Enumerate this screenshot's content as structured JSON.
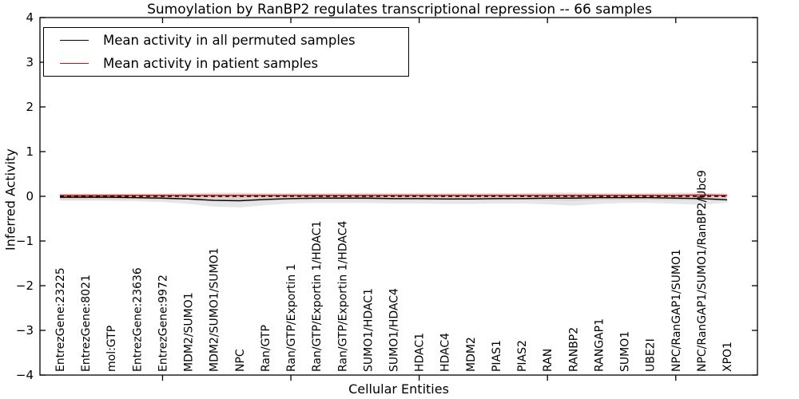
{
  "chart_data": {
    "type": "line",
    "title": "Sumoylation by RanBP2 regulates transcriptional repression -- 66 samples",
    "xlabel": "Cellular Entities",
    "ylabel": "Inferred Activity",
    "ylim": [
      -4,
      4
    ],
    "yticks": [
      4,
      3,
      2,
      1,
      0,
      -1,
      -2,
      -3,
      -4
    ],
    "ytick_labels": [
      "4",
      "3",
      "2",
      "1",
      "0",
      "−1",
      "−2",
      "−3",
      "−4"
    ],
    "x_major_tick_indices": [
      4,
      9,
      14,
      19,
      24
    ],
    "grid": false,
    "categories": [
      "EntrezGene:23225",
      "EntrezGene:8021",
      "mol:GTP",
      "EntrezGene:23636",
      "EntrezGene:9972",
      "MDM2/SUMO1",
      "MDM2/SUMO1/SUMO1",
      "NPC",
      "Ran/GTP",
      "Ran/GTP/Exportin 1",
      "Ran/GTP/Exportin 1/HDAC1",
      "Ran/GTP/Exportin 1/HDAC4",
      "SUMO1/HDAC1",
      "SUMO1/HDAC4",
      "HDAC1",
      "HDAC4",
      "MDM2",
      "PIAS1",
      "PIAS2",
      "RAN",
      "RANBP2",
      "RANGAP1",
      "SUMO1",
      "UBE2I",
      "NPC/RanGAP1/SUMO1",
      "NPC/RanGAP1/SUMO1/RanBP2/Ubc9",
      "XPO1"
    ],
    "series": [
      {
        "name": "Mean activity in all permuted samples",
        "color": "#000000",
        "style": "solid",
        "values": [
          -0.02,
          -0.02,
          -0.02,
          -0.03,
          -0.04,
          -0.06,
          -0.09,
          -0.1,
          -0.07,
          -0.05,
          -0.04,
          -0.04,
          -0.04,
          -0.05,
          -0.05,
          -0.06,
          -0.06,
          -0.05,
          -0.05,
          -0.04,
          -0.04,
          -0.03,
          -0.03,
          -0.03,
          -0.04,
          -0.05,
          -0.08
        ]
      },
      {
        "name": "Mean activity in patient samples",
        "color": "#ff0000",
        "style": "solid",
        "values": [
          0.02,
          0.02,
          0.02,
          0.02,
          0.02,
          0.02,
          0.02,
          0.02,
          0.02,
          0.02,
          0.02,
          0.02,
          0.02,
          0.02,
          0.02,
          0.02,
          0.02,
          0.02,
          0.02,
          0.02,
          0.02,
          0.02,
          0.02,
          0.02,
          0.02,
          0.03,
          0.02
        ]
      },
      {
        "name": "zero-reference",
        "color": "#000000",
        "style": "dashed",
        "values": [
          0,
          0,
          0,
          0,
          0,
          0,
          0,
          0,
          0,
          0,
          0,
          0,
          0,
          0,
          0,
          0,
          0,
          0,
          0,
          0,
          0,
          0,
          0,
          0,
          0,
          0,
          0
        ]
      }
    ],
    "bands": [
      {
        "name": "permuted-std-band",
        "color": "#d9d9d9",
        "opacity": 0.65,
        "upper": [
          0.05,
          0.05,
          0.05,
          0.06,
          0.06,
          0.07,
          0.08,
          0.08,
          0.07,
          0.07,
          0.07,
          0.07,
          0.07,
          0.07,
          0.07,
          0.07,
          0.07,
          0.07,
          0.07,
          0.08,
          0.08,
          0.07,
          0.07,
          0.07,
          0.08,
          0.08,
          0.06
        ],
        "lower": [
          -0.1,
          -0.1,
          -0.1,
          -0.11,
          -0.13,
          -0.17,
          -0.23,
          -0.25,
          -0.2,
          -0.16,
          -0.15,
          -0.15,
          -0.15,
          -0.16,
          -0.16,
          -0.17,
          -0.17,
          -0.16,
          -0.16,
          -0.18,
          -0.21,
          -0.17,
          -0.15,
          -0.15,
          -0.17,
          -0.19,
          -0.14
        ]
      },
      {
        "name": "patient-std-band",
        "color": "#c4c4c4",
        "opacity": 0.55,
        "upper": [
          0.06,
          0.06,
          0.06,
          0.06,
          0.06,
          0.06,
          0.06,
          0.06,
          0.06,
          0.06,
          0.06,
          0.06,
          0.06,
          0.06,
          0.06,
          0.06,
          0.06,
          0.06,
          0.06,
          0.06,
          0.06,
          0.06,
          0.06,
          0.06,
          0.06,
          0.06,
          0.06
        ],
        "lower": [
          -0.07,
          -0.07,
          -0.07,
          -0.07,
          -0.08,
          -0.09,
          -0.11,
          -0.12,
          -0.1,
          -0.09,
          -0.08,
          -0.08,
          -0.08,
          -0.09,
          -0.09,
          -0.09,
          -0.09,
          -0.09,
          -0.08,
          -0.09,
          -0.1,
          -0.08,
          -0.08,
          -0.08,
          -0.09,
          -0.09,
          -0.08
        ]
      }
    ],
    "legend": {
      "position": "upper-left",
      "entries": [
        {
          "label": "Mean activity in all permuted samples",
          "color": "#000000"
        },
        {
          "label": "Mean activity in patient samples",
          "color": "#ff0000"
        }
      ]
    }
  }
}
